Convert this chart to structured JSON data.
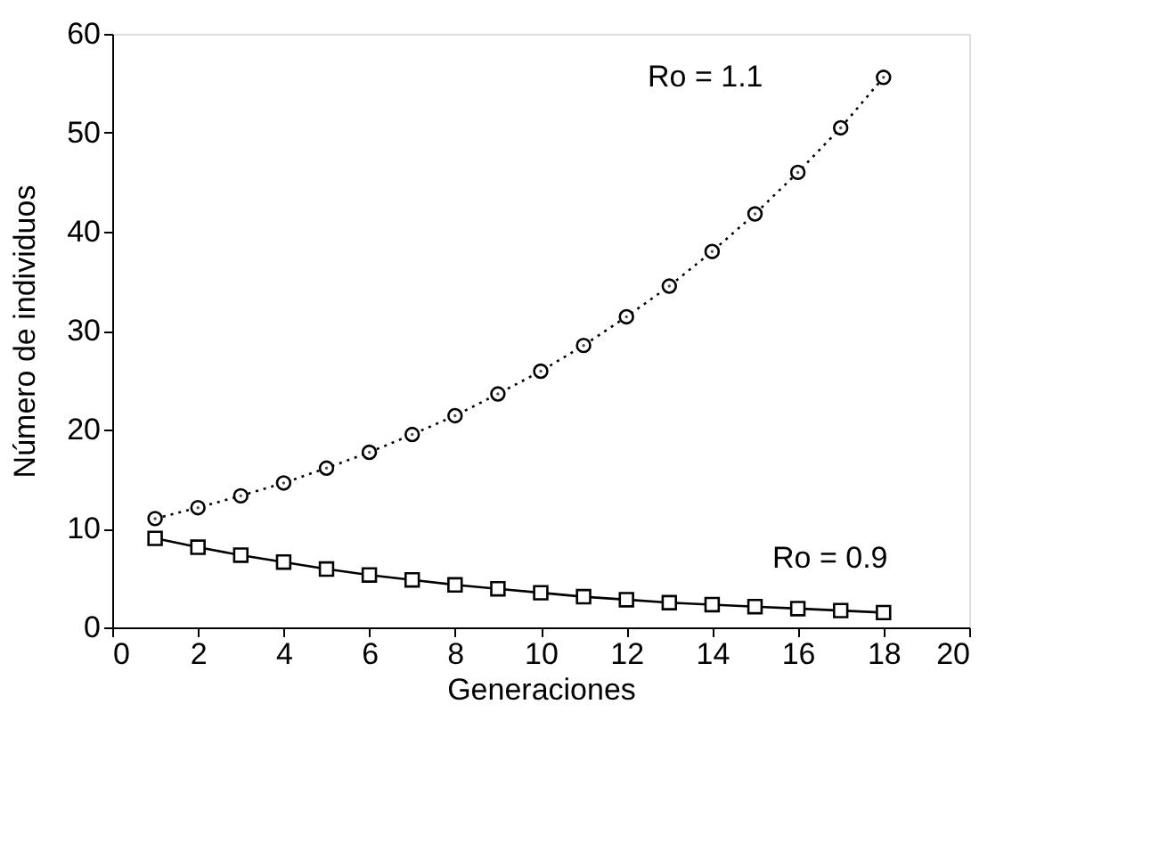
{
  "chart_data": {
    "type": "line",
    "xlabel": "Generaciones",
    "ylabel": "Número de individuos",
    "x": [
      1,
      2,
      3,
      4,
      5,
      6,
      7,
      8,
      9,
      10,
      11,
      12,
      13,
      14,
      15,
      16,
      17,
      18
    ],
    "series": [
      {
        "name": "Ro = 1.1",
        "color": "#000000",
        "marker": "circle",
        "line_style": "dotted",
        "values": [
          11.0,
          12.1,
          13.3,
          14.6,
          16.1,
          17.7,
          19.5,
          21.4,
          23.6,
          25.9,
          28.5,
          31.4,
          34.5,
          38.0,
          41.8,
          46.0,
          50.5,
          55.6
        ]
      },
      {
        "name": "Ro = 0.9",
        "color": "#000000",
        "marker": "square",
        "line_style": "solid",
        "values": [
          9.0,
          8.1,
          7.3,
          6.6,
          5.9,
          5.3,
          4.8,
          4.3,
          3.9,
          3.5,
          3.1,
          2.8,
          2.5,
          2.3,
          2.1,
          1.9,
          1.7,
          1.5
        ]
      }
    ],
    "xlim": [
      0,
      20
    ],
    "xticks": [
      0,
      2,
      4,
      6,
      8,
      10,
      12,
      14,
      16,
      18,
      20
    ],
    "ylim": [
      0,
      60
    ],
    "yticks": [
      0,
      10,
      20,
      30,
      40,
      50,
      60
    ],
    "grid": false
  }
}
